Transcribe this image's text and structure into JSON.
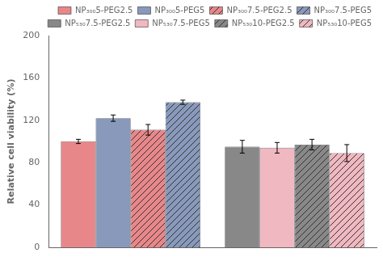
{
  "chart_data": {
    "type": "bar",
    "ylabel": "Relative cell viability (%)",
    "categories": [
      null,
      null
    ],
    "series": [
      {
        "name": "NP₃₀₀5-PEG2.5",
        "color": "#E8878A",
        "values": [
          100,
          null
        ],
        "errors": [
          2,
          null
        ]
      },
      {
        "name": "NP₃₀₀5-PEG5",
        "color": "#8899BB",
        "values": [
          122,
          null
        ],
        "errors": [
          3,
          null
        ]
      },
      {
        "name": "NP₃₀₀7.5-PEG2.5",
        "color": "#E8878A",
        "values": [
          111,
          null
        ],
        "errors": [
          5,
          null
        ]
      },
      {
        "name": "NP₃₀₀7.5-PEG5",
        "color": "#8899BB",
        "values": [
          137,
          null
        ],
        "errors": [
          2,
          null
        ]
      },
      {
        "name": "NP₅₃₀7.5-PEG2.5",
        "color": "#888888",
        "values": [
          null,
          95
        ],
        "errors": [
          null,
          6
        ]
      },
      {
        "name": "NP₅₃₀7.5-PEG5",
        "color": "#F0B8C0",
        "values": [
          null,
          94
        ],
        "errors": [
          null,
          5
        ]
      },
      {
        "name": "NP₅₃₀10-PEG2.5",
        "color": "#888888",
        "values": [
          null,
          97
        ],
        "errors": [
          null,
          5
        ]
      },
      {
        "name": "NP₅₃₀10-PEG5",
        "color": "#F0B8C0",
        "values": [
          null,
          89
        ],
        "errors": [
          null,
          8
        ]
      }
    ],
    "ylim": [
      0,
      200
    ],
    "yticks": [
      0,
      40,
      80,
      120,
      160,
      200
    ],
    "grid": false,
    "legend": "upper right",
    "tick_labels": "y"
  }
}
